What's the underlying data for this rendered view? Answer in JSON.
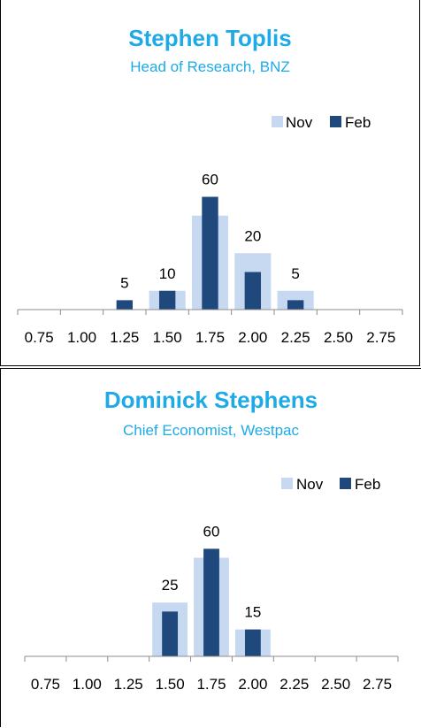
{
  "chart_data": [
    {
      "type": "bar",
      "title": "Stephen Toplis",
      "subtitle": "Head of Research, BNZ",
      "categories": [
        "0.75",
        "1.00",
        "1.25",
        "1.50",
        "1.75",
        "2.00",
        "2.25",
        "2.50",
        "2.75"
      ],
      "series": [
        {
          "name": "Nov",
          "color": "#c6d9f1",
          "values": [
            0,
            0,
            0,
            10,
            50,
            30,
            10,
            0,
            0
          ]
        },
        {
          "name": "Feb",
          "color": "#1f497d",
          "values": [
            0,
            0,
            5,
            10,
            60,
            20,
            5,
            0,
            0
          ]
        }
      ],
      "data_labels": [
        "",
        "",
        "5",
        "10",
        "60",
        "20",
        "5",
        "",
        ""
      ],
      "ylim": [
        0,
        80
      ],
      "legend": "top-right",
      "grid": false
    },
    {
      "type": "bar",
      "title": "Dominick Stephens",
      "subtitle": "Chief Economist, Westpac",
      "categories": [
        "0.75",
        "1.00",
        "1.25",
        "1.50",
        "1.75",
        "2.00",
        "2.25",
        "2.50",
        "2.75"
      ],
      "series": [
        {
          "name": "Nov",
          "color": "#c6d9f1",
          "values": [
            0,
            0,
            0,
            30,
            55,
            15,
            0,
            0,
            0
          ]
        },
        {
          "name": "Feb",
          "color": "#1f497d",
          "values": [
            0,
            0,
            0,
            25,
            60,
            15,
            0,
            0,
            0
          ]
        }
      ],
      "data_labels": [
        "",
        "",
        "",
        "25",
        "60",
        "15",
        "",
        "",
        ""
      ],
      "ylim": [
        0,
        75
      ],
      "legend": "top-right",
      "grid": false
    }
  ]
}
